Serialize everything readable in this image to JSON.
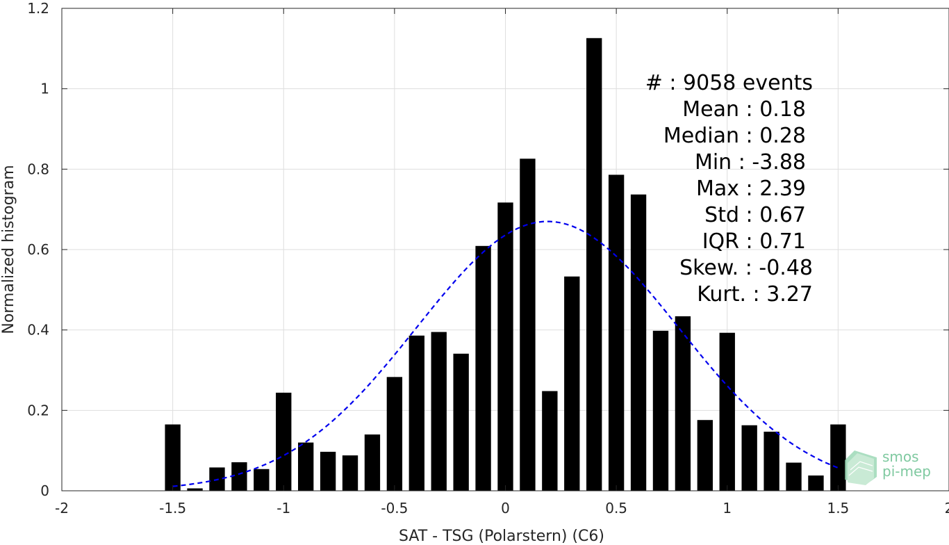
{
  "chart_data": {
    "type": "bar",
    "xlabel": "SAT - TSG (Polarstern) (C6)",
    "ylabel": "Normalized histogram",
    "xlim": [
      -2,
      2
    ],
    "ylim": [
      0,
      1.2
    ],
    "xticks": [
      "-2",
      "-1.5",
      "-1",
      "-0.5",
      "0",
      "0.5",
      "1",
      "1.5",
      "2"
    ],
    "yticks": [
      "0",
      "0.2",
      "0.4",
      "0.6",
      "0.8",
      "1",
      "1.2"
    ],
    "grid": true,
    "bar_color": "#000000",
    "bins": {
      "x": [
        -1.5,
        -1.4,
        -1.3,
        -1.2,
        -1.1,
        -1.0,
        -0.9,
        -0.8,
        -0.7,
        -0.6,
        -0.5,
        -0.4,
        -0.3,
        -0.2,
        -0.1,
        0.0,
        0.1,
        0.2,
        0.3,
        0.4,
        0.5,
        0.6,
        0.7,
        0.8,
        0.9,
        1.0,
        1.1,
        1.2,
        1.3,
        1.4,
        1.5
      ],
      "values": [
        0.165,
        0.006,
        0.058,
        0.071,
        0.054,
        0.244,
        0.12,
        0.097,
        0.088,
        0.14,
        0.283,
        0.386,
        0.395,
        0.341,
        0.609,
        0.717,
        0.826,
        0.248,
        0.533,
        1.126,
        0.786,
        0.737,
        0.398,
        0.434,
        0.176,
        0.393,
        0.163,
        0.147,
        0.07,
        0.038,
        0.165
      ]
    },
    "fit_curve": {
      "type": "gaussian",
      "style": "dashed",
      "color": "#0000ee",
      "mean": 0.19,
      "std": 0.59,
      "peak": 0.67,
      "x_range": [
        -1.5,
        1.5
      ]
    },
    "stats": [
      {
        "label": "#  : 9058 events"
      },
      {
        "label": "Mean : 0.18"
      },
      {
        "label": "Median : 0.28"
      },
      {
        "label": "Min : -3.88"
      },
      {
        "label": "Max : 2.39"
      },
      {
        "label": "Std : 0.67"
      },
      {
        "label": "IQR : 0.71"
      },
      {
        "label": "Skew. : -0.48"
      },
      {
        "label": "Kurt. : 3.27"
      }
    ]
  },
  "logo": {
    "line1": "smos",
    "line2": "pi-mep",
    "color": "#7fc9a0"
  }
}
